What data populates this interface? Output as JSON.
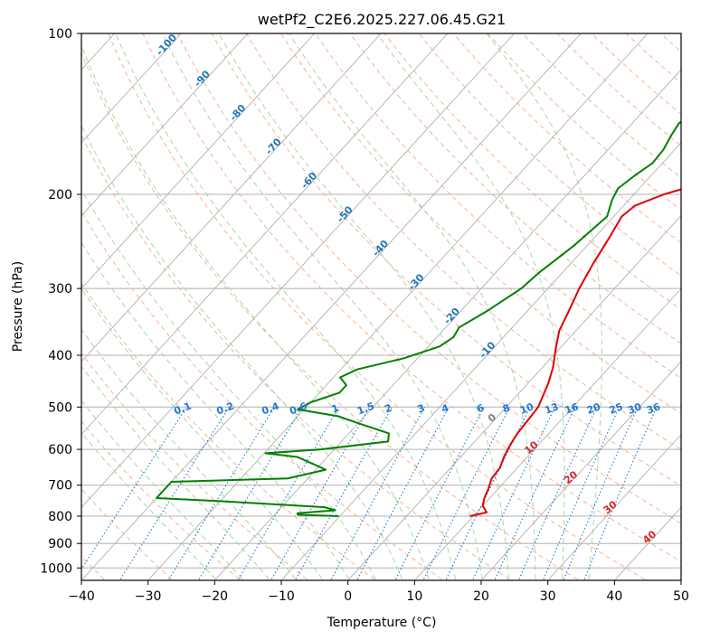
{
  "chart_data": {
    "type": "line",
    "title": "wetPf2_C2E6.2025.227.06.45.G21",
    "xlabel": "Temperature (°C)",
    "ylabel": "Pressure (hPa)",
    "xlim": [
      -40,
      50
    ],
    "ylim": [
      1050,
      100
    ],
    "y_scale": "log",
    "grid": true,
    "x_ticks": [
      -40,
      -30,
      -20,
      -10,
      0,
      10,
      20,
      30,
      40,
      50
    ],
    "y_ticks": [
      100,
      200,
      300,
      400,
      500,
      600,
      700,
      800,
      900,
      1000
    ],
    "series": [
      {
        "name": "",
        "color": "#e00000",
        "points": [
          {
            "p": 800,
            "t": 9.5
          },
          {
            "p": 787,
            "t": 11.5
          },
          {
            "p": 765,
            "t": 10
          },
          {
            "p": 740,
            "t": 9.2
          },
          {
            "p": 710,
            "t": 8.5
          },
          {
            "p": 680,
            "t": 7.6
          },
          {
            "p": 650,
            "t": 7.4
          },
          {
            "p": 620,
            "t": 6.5
          },
          {
            "p": 590,
            "t": 5.8
          },
          {
            "p": 560,
            "t": 5.3
          },
          {
            "p": 500,
            "t": 4.8
          },
          {
            "p": 450,
            "t": 3
          },
          {
            "p": 420,
            "t": 1.5
          },
          {
            "p": 390,
            "t": -0.5
          },
          {
            "p": 360,
            "t": -2.5
          },
          {
            "p": 330,
            "t": -3.8
          },
          {
            "p": 300,
            "t": -5.3
          },
          {
            "p": 270,
            "t": -6.6
          },
          {
            "p": 240,
            "t": -7.8
          },
          {
            "p": 220,
            "t": -8.8
          },
          {
            "p": 210,
            "t": -8.3
          },
          {
            "p": 200,
            "t": -5.5
          },
          {
            "p": 190,
            "t": -1
          },
          {
            "p": 180,
            "t": 1.5
          },
          {
            "p": 170,
            "t": 3.7
          },
          {
            "p": 160,
            "t": 6.2
          },
          {
            "p": 150,
            "t": 9.5
          },
          {
            "p": 140,
            "t": 11.5
          },
          {
            "p": 130,
            "t": 13.5
          },
          {
            "p": 120,
            "t": 17
          },
          {
            "p": 110,
            "t": 19.2
          },
          {
            "p": 100,
            "t": 21.8
          }
        ]
      },
      {
        "name": "",
        "color": "#008000",
        "points": [
          {
            "p": 800,
            "t": -10.2
          },
          {
            "p": 795,
            "t": -16.5
          },
          {
            "p": 790,
            "t": -16.8
          },
          {
            "p": 780,
            "t": -11.5
          },
          {
            "p": 770,
            "t": -13.5
          },
          {
            "p": 750,
            "t": -30
          },
          {
            "p": 740,
            "t": -40
          },
          {
            "p": 690,
            "t": -40
          },
          {
            "p": 680,
            "t": -23
          },
          {
            "p": 655,
            "t": -18.5
          },
          {
            "p": 640,
            "t": -21
          },
          {
            "p": 620,
            "t": -24.5
          },
          {
            "p": 610,
            "t": -29.8
          },
          {
            "p": 600,
            "t": -22
          },
          {
            "p": 580,
            "t": -13
          },
          {
            "p": 560,
            "t": -14
          },
          {
            "p": 540,
            "t": -19
          },
          {
            "p": 520,
            "t": -24
          },
          {
            "p": 505,
            "t": -31
          },
          {
            "p": 490,
            "t": -30
          },
          {
            "p": 470,
            "t": -27
          },
          {
            "p": 455,
            "t": -27
          },
          {
            "p": 440,
            "t": -29
          },
          {
            "p": 425,
            "t": -27.5
          },
          {
            "p": 405,
            "t": -22
          },
          {
            "p": 385,
            "t": -18.3
          },
          {
            "p": 370,
            "t": -17.5
          },
          {
            "p": 355,
            "t": -18
          },
          {
            "p": 330,
            "t": -16
          },
          {
            "p": 300,
            "t": -14
          },
          {
            "p": 280,
            "t": -13.5
          },
          {
            "p": 250,
            "t": -12
          },
          {
            "p": 220,
            "t": -11
          },
          {
            "p": 205,
            "t": -12.5
          },
          {
            "p": 195,
            "t": -13.2
          },
          {
            "p": 185,
            "t": -12.5
          },
          {
            "p": 175,
            "t": -11.5
          },
          {
            "p": 165,
            "t": -11.7
          },
          {
            "p": 155,
            "t": -12.5
          },
          {
            "p": 147,
            "t": -13
          },
          {
            "p": 140,
            "t": -11
          },
          {
            "p": 130,
            "t": -8
          },
          {
            "p": 120,
            "t": -6
          },
          {
            "p": 110,
            "t": -3.5
          },
          {
            "p": 100,
            "t": 0
          }
        ]
      }
    ],
    "isotherm_labels": [
      {
        "text": "-100",
        "t": -100
      },
      {
        "text": "-90",
        "t": -90
      },
      {
        "text": "-80",
        "t": -80
      },
      {
        "text": "-70",
        "t": -70
      },
      {
        "text": "-60",
        "t": -60
      },
      {
        "text": "-50",
        "t": -50
      },
      {
        "text": "-40",
        "t": -40
      },
      {
        "text": "-30",
        "t": -30
      },
      {
        "text": "-20",
        "t": -20
      },
      {
        "text": "-10",
        "t": -10
      }
    ],
    "isotherm_labels_low": [
      {
        "text": "0",
        "t": 0,
        "color": "#808080"
      },
      {
        "text": "10",
        "t": 10,
        "color": "#d62728"
      },
      {
        "text": "20",
        "t": 20,
        "color": "#d62728"
      },
      {
        "text": "30",
        "t": 30,
        "color": "#d62728"
      },
      {
        "text": "40",
        "t": 40,
        "color": "#d62728"
      }
    ],
    "mixing_ratio_labels": [
      "0.1",
      "0.2",
      "0.4",
      "0.6",
      "1",
      "1.5",
      "2",
      "3",
      "4",
      "6",
      "8",
      "10",
      "13",
      "16",
      "20",
      "25",
      "30",
      "36"
    ],
    "colors": {
      "isotherm_grid": "#b0b0b0",
      "dry_adiabat": "#f4a582",
      "moist_adiabat": "#9fd39f",
      "mixing_ratio": "#1f77d4",
      "isotherm_label": "#1f77b4"
    }
  }
}
